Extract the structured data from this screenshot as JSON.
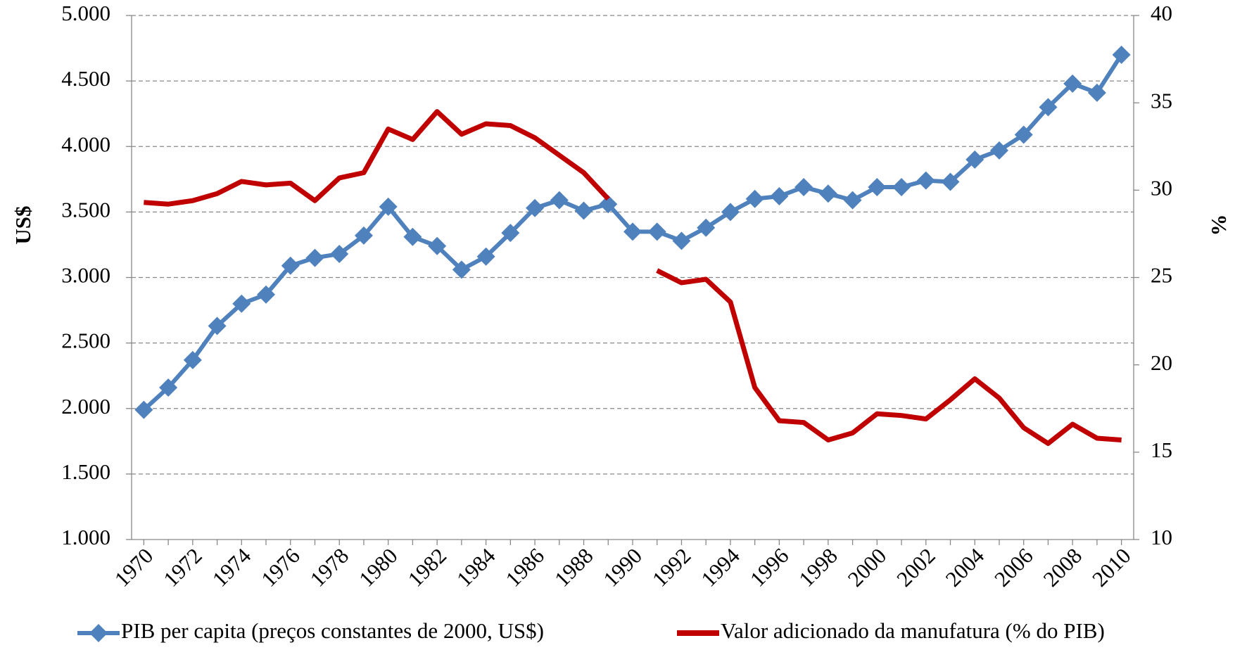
{
  "chart_data": {
    "type": "line",
    "categories": [
      "1970",
      null,
      "1972",
      null,
      "1974",
      null,
      "1976",
      null,
      "1978",
      null,
      "1980",
      null,
      "1982",
      null,
      "1984",
      null,
      "1986",
      null,
      "1988",
      null,
      "1990",
      null,
      "1992",
      null,
      "1994",
      null,
      "1996",
      null,
      "1998",
      null,
      "2000",
      null,
      "2002",
      null,
      "2004",
      null,
      "2006",
      null,
      "2008",
      null,
      "2010"
    ],
    "series": [
      {
        "name": "PIB per capita (preços constantes de 2000, US$)",
        "color": "#4f81bd",
        "axis": "y",
        "marker": "diamond",
        "values": [
          1990,
          2160,
          2370,
          2630,
          2800,
          2870,
          3090,
          3150,
          3180,
          3320,
          3540,
          3310,
          3240,
          3060,
          3160,
          3340,
          3530,
          3590,
          3510,
          3560,
          3350,
          3350,
          3280,
          3380,
          3500,
          3600,
          3620,
          3690,
          3640,
          3590,
          3690,
          3690,
          3740,
          3730,
          3900,
          3970,
          4090,
          4300,
          4480,
          4410,
          4700
        ]
      },
      {
        "name": "Valor adicionado da manufatura (% do PIB)",
        "color": "#c00000",
        "axis": "y2",
        "values": [
          29.3,
          29.2,
          29.4,
          29.8,
          30.5,
          30.3,
          30.4,
          29.4,
          30.7,
          31.0,
          33.5,
          32.9,
          34.5,
          33.2,
          33.8,
          33.7,
          33.0,
          32.0,
          31.0,
          29.5,
          null,
          25.4,
          24.7,
          24.9,
          23.6,
          18.7,
          16.8,
          16.7,
          15.7,
          16.1,
          17.2,
          17.1,
          16.9,
          18.0,
          19.2,
          18.1,
          16.4,
          15.5,
          16.6,
          15.8,
          15.7
        ]
      }
    ],
    "ylabel": "US$",
    "y2label": "%",
    "ylim": [
      1000,
      5000
    ],
    "yticks": [
      {
        "value": 1000,
        "label": "1.000"
      },
      {
        "value": 1500,
        "label": "1.500"
      },
      {
        "value": 2000,
        "label": "2.000"
      },
      {
        "value": 2500,
        "label": "2.500"
      },
      {
        "value": 3000,
        "label": "3.000"
      },
      {
        "value": 3500,
        "label": "3.500"
      },
      {
        "value": 4000,
        "label": "4.000"
      },
      {
        "value": 4500,
        "label": "4.500"
      },
      {
        "value": 5000,
        "label": "5.000"
      }
    ],
    "y2lim": [
      10,
      40
    ],
    "y2ticks": [
      10,
      15,
      20,
      25,
      30,
      35,
      40
    ],
    "grid": true,
    "legend": "bottom"
  }
}
